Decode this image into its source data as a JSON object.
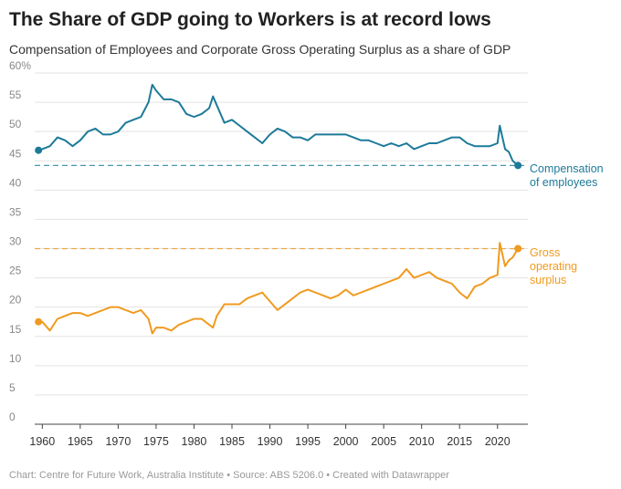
{
  "chart_data": {
    "type": "line",
    "title": "The Share of GDP going to Workers is at record lows",
    "subtitle": "Compensation of Employees and Corporate Gross Operating Surplus as a share of GDP",
    "source": "Chart: Centre for Future Work, Australia Institute • Source: ABS 5206.0 • Created with Datawrapper",
    "x": [
      1959.5,
      1960,
      1961,
      1962,
      1963,
      1964,
      1965,
      1966,
      1967,
      1968,
      1969,
      1970,
      1971,
      1972,
      1973,
      1974,
      1974.5,
      1975,
      1976,
      1977,
      1978,
      1979,
      1980,
      1981,
      1982,
      1982.5,
      1983,
      1984,
      1985,
      1986,
      1987,
      1988,
      1989,
      1990,
      1991,
      1992,
      1993,
      1994,
      1995,
      1996,
      1997,
      1998,
      1999,
      2000,
      2001,
      2002,
      2003,
      2004,
      2005,
      2006,
      2007,
      2008,
      2009,
      2010,
      2011,
      2012,
      2013,
      2014,
      2015,
      2016,
      2017,
      2018,
      2019,
      2020,
      2020.3,
      2021,
      2021.5,
      2022,
      2022.7
    ],
    "series": [
      {
        "name": "Compensation of employees",
        "color": "#1d7a99",
        "values": [
          46.8,
          47,
          47.5,
          49,
          48.5,
          47.5,
          48.5,
          50,
          50.5,
          49.5,
          49.5,
          50,
          51.5,
          52,
          52.5,
          55,
          58,
          57,
          55.5,
          55.5,
          55,
          53,
          52.5,
          53,
          54,
          56,
          54.5,
          51.5,
          52,
          51,
          50,
          49,
          48,
          49.5,
          50.5,
          50,
          49,
          49,
          48.5,
          49.5,
          49.5,
          49.5,
          49.5,
          49.5,
          49,
          48.5,
          48.5,
          48,
          47.5,
          48,
          47.5,
          48,
          47,
          47.5,
          48,
          48,
          48.5,
          49,
          49,
          48,
          47.5,
          47.5,
          47.5,
          48,
          51,
          47,
          46.5,
          45,
          44.2
        ]
      },
      {
        "name": "Gross operating surplus",
        "color": "#f09a1f",
        "values": [
          17.5,
          17.5,
          16,
          18,
          18.5,
          19,
          19,
          18.5,
          19,
          19.5,
          20,
          20,
          19.5,
          19,
          19.5,
          18,
          15.5,
          16.5,
          16.5,
          16,
          17,
          17.5,
          18,
          18,
          17,
          16.5,
          18.5,
          20.5,
          20.5,
          20.5,
          21.5,
          22,
          22.5,
          21,
          19.5,
          20.5,
          21.5,
          22.5,
          23,
          22.5,
          22,
          21.5,
          22,
          23,
          22,
          22.5,
          23,
          23.5,
          24,
          24.5,
          25,
          26.5,
          25,
          25.5,
          26,
          25,
          24.5,
          24,
          22.5,
          21.5,
          23.5,
          24,
          25,
          25.5,
          31,
          27,
          28,
          28.5,
          30
        ]
      }
    ],
    "reference_lines": [
      44.2,
      30
    ],
    "xlim": [
      1959,
      2024
    ],
    "xticks": [
      1960,
      1965,
      1970,
      1975,
      1980,
      1985,
      1990,
      1995,
      2000,
      2005,
      2010,
      2015,
      2020
    ],
    "ylim": [
      0,
      60
    ],
    "yticks": [
      0,
      5,
      10,
      15,
      20,
      25,
      30,
      35,
      40,
      45,
      50,
      55,
      {
        "value": 60,
        "label": "60%"
      }
    ],
    "grid": true
  }
}
